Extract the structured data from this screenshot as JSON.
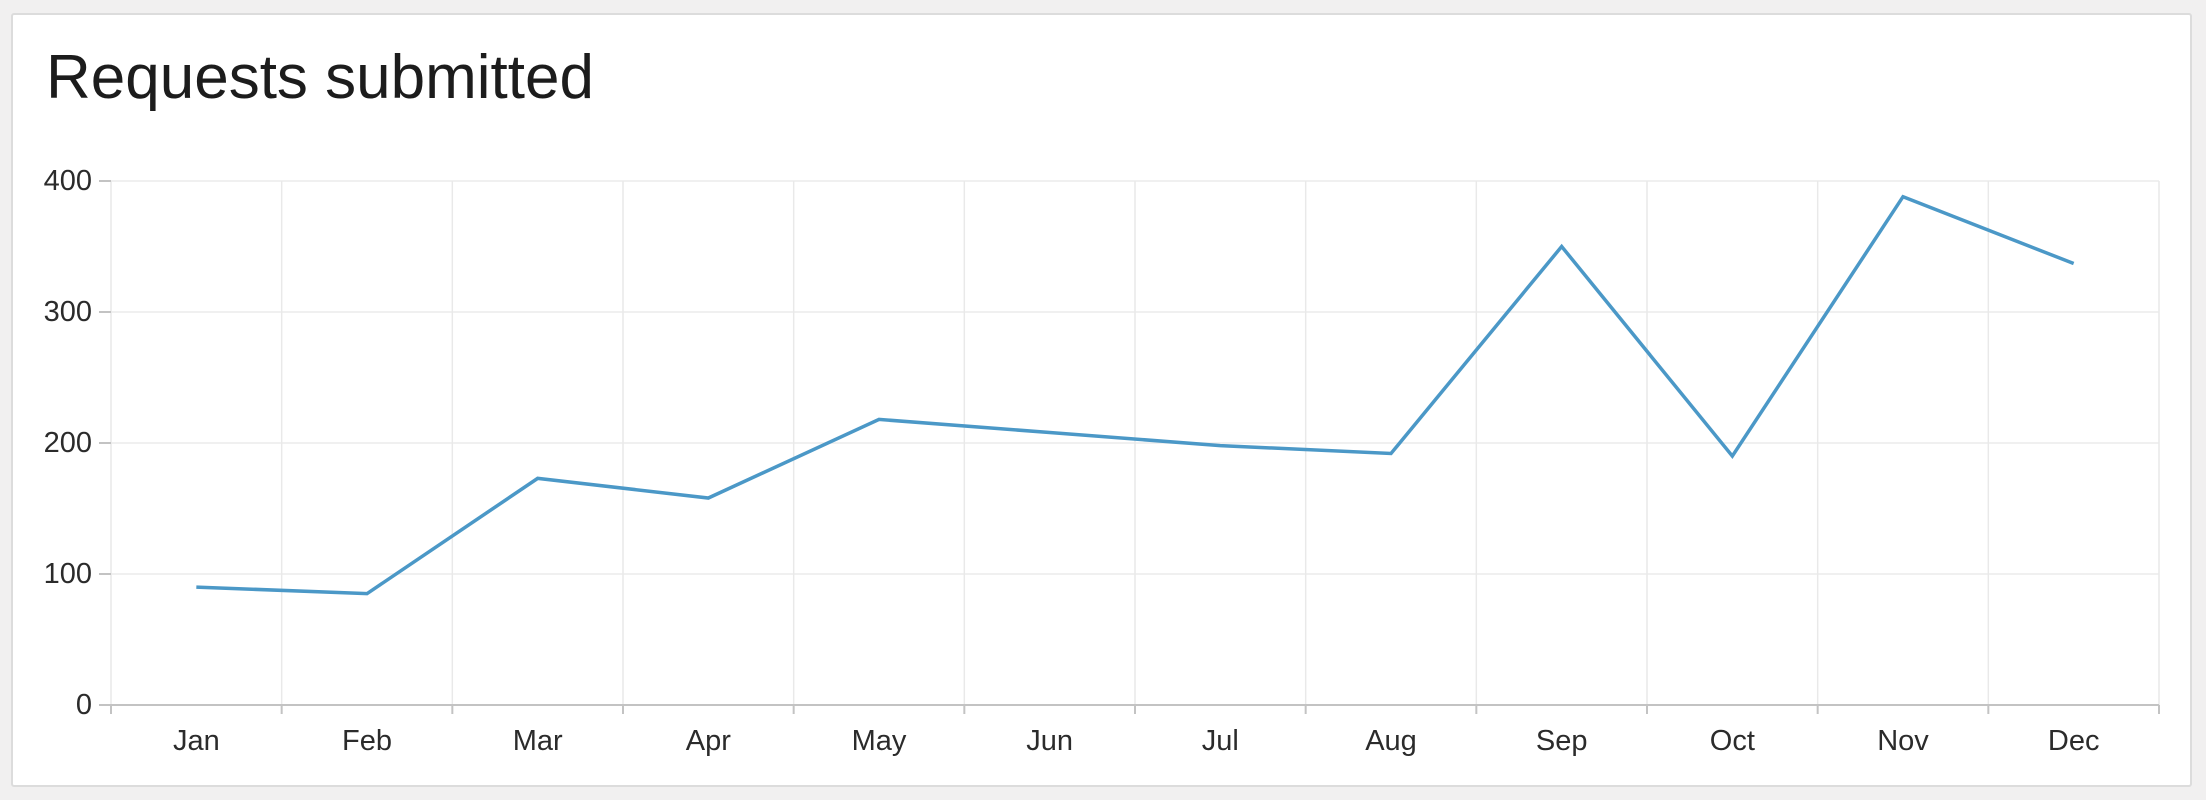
{
  "chart_data": {
    "type": "line",
    "title": "Requests submitted",
    "categories": [
      "Jan",
      "Feb",
      "Mar",
      "Apr",
      "May",
      "Jun",
      "Jul",
      "Aug",
      "Sep",
      "Oct",
      "Nov",
      "Dec"
    ],
    "series": [
      {
        "name": "Requests submitted",
        "values": [
          90,
          85,
          173,
          158,
          218,
          208,
          198,
          192,
          350,
          190,
          388,
          337
        ]
      }
    ],
    "xlabel": "",
    "ylabel": "",
    "ylim": [
      0,
      400
    ],
    "yticks": [
      0,
      100,
      200,
      300,
      400
    ],
    "grid": true,
    "legend": false,
    "line_color": "#4b98c7"
  },
  "colors": {
    "page_background": "#f1f0f0",
    "card_background": "#ffffff",
    "card_border": "#dcdcdc",
    "axis_line": "#c3c3c3",
    "horizontal_gridline": "#ececec",
    "vertical_gridline": "#e9e9e9",
    "tick_label": "#2b2b2b",
    "title_text": "#1c1c1c"
  }
}
